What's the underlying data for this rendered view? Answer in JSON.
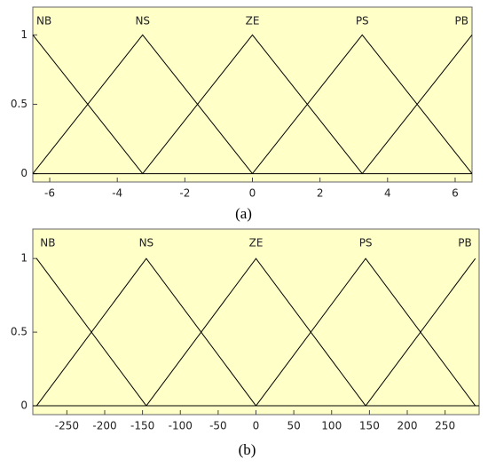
{
  "chart_data": [
    {
      "type": "line",
      "caption": "(a)",
      "xlim": [
        -6.5,
        6.5
      ],
      "ylim": [
        -0.06,
        1.2
      ],
      "xticks": [
        -6,
        -4,
        -2,
        0,
        2,
        4,
        6
      ],
      "yticks": [
        0,
        0.5,
        1
      ],
      "series": [
        {
          "name": "NB",
          "color": "#000000",
          "x": [
            -6.5,
            -3.25
          ],
          "values": [
            1,
            0
          ]
        },
        {
          "name": "NS",
          "color": "#000000",
          "x": [
            -6.5,
            -3.25,
            0
          ],
          "values": [
            0,
            1,
            0
          ]
        },
        {
          "name": "ZE",
          "color": "#000000",
          "x": [
            -3.25,
            0,
            3.25
          ],
          "values": [
            0,
            1,
            0
          ]
        },
        {
          "name": "PS",
          "color": "#000000",
          "x": [
            0,
            3.25,
            6.5
          ],
          "values": [
            0,
            1,
            0
          ]
        },
        {
          "name": "PB",
          "color": "#000000",
          "x": [
            3.25,
            6.5
          ],
          "values": [
            0,
            1
          ]
        }
      ]
    },
    {
      "type": "line",
      "caption": "(b)",
      "xlim": [
        -295,
        295
      ],
      "ylim": [
        -0.06,
        1.2
      ],
      "xticks": [
        -250,
        -200,
        -150,
        -100,
        -50,
        0,
        50,
        100,
        150,
        200,
        250
      ],
      "yticks": [
        0,
        0.5,
        1
      ],
      "series": [
        {
          "name": "NB",
          "color": "#000000",
          "x": [
            -290,
            -145
          ],
          "values": [
            1,
            0
          ]
        },
        {
          "name": "NS",
          "color": "#000000",
          "x": [
            -290,
            -145,
            0
          ],
          "values": [
            0,
            1,
            0
          ]
        },
        {
          "name": "ZE",
          "color": "#000000",
          "x": [
            -145,
            0,
            145
          ],
          "values": [
            0,
            1,
            0
          ]
        },
        {
          "name": "PS",
          "color": "#000000",
          "x": [
            0,
            145,
            290
          ],
          "values": [
            0,
            1,
            0
          ]
        },
        {
          "name": "PB",
          "color": "#000000",
          "x": [
            145,
            290
          ],
          "values": [
            0,
            1
          ]
        }
      ]
    }
  ]
}
